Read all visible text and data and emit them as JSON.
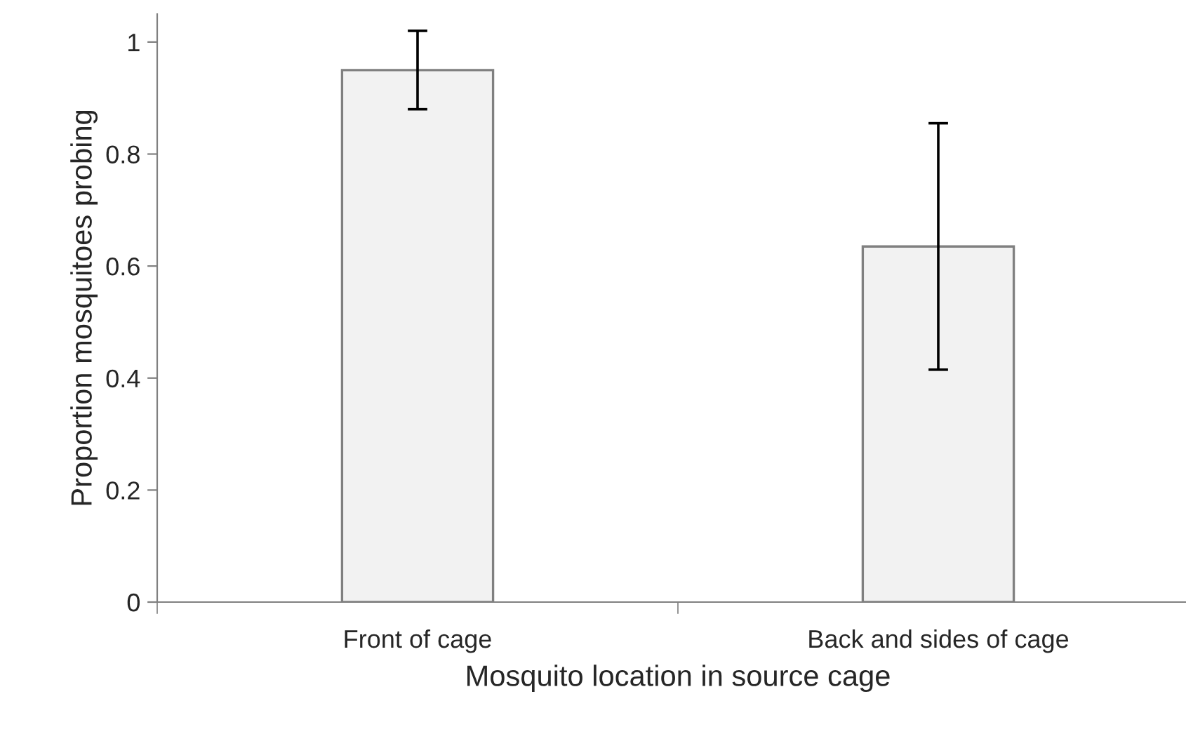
{
  "chart_data": {
    "type": "bar",
    "xlabel": "Mosquito location in source cage",
    "ylabel": "Proportion mosquitoes probing",
    "categories": [
      "Front of cage",
      "Back and sides of cage"
    ],
    "values": [
      0.95,
      0.635
    ],
    "errors": [
      0.07,
      0.22
    ],
    "color": "#f2f2f2",
    "ylim": [
      0,
      1.05
    ],
    "yticks": [
      0,
      0.2,
      0.4,
      0.6,
      0.8,
      1
    ],
    "grid": false,
    "legend": false
  }
}
